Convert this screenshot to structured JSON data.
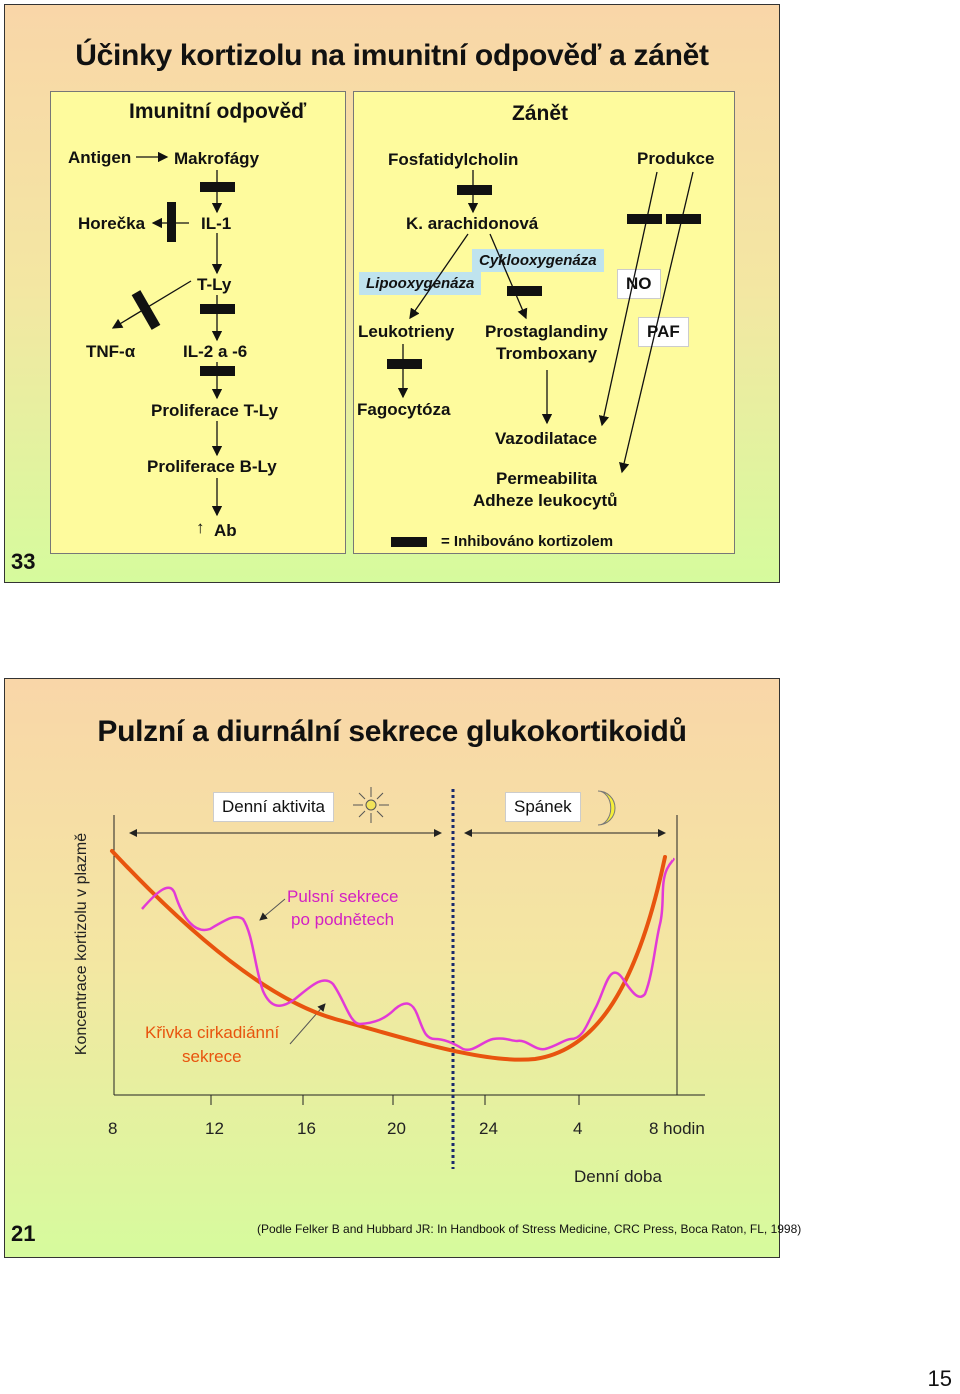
{
  "slide1": {
    "title": "Účinky kortizolu na imunitní odpověď a zánět",
    "number": "33",
    "left_panel": {
      "heading": "Imunitní odpověď",
      "antigen": "Antigen",
      "makrofagy": "Makrofágy",
      "horecka": "Horečka",
      "il1": "IL-1",
      "tly": "T-Ly",
      "tnf": "TNF-α",
      "il26": "IL-2 a -6",
      "prolif_t": "Proliferace T-Ly",
      "prolif_b": "Proliferace B-Ly",
      "ab_arrow": "↑",
      "ab": "Ab"
    },
    "right_panel": {
      "heading": "Zánět",
      "fosfatidylcholin": "Fosfatidylcholin",
      "produkce": "Produkce",
      "arachidonova": "K. arachidonová",
      "cyklooxygenaza": "Cyklooxygenáza",
      "lipooxygenaza": "Lipooxygenáza",
      "no": "NO",
      "paf": "PAF",
      "leukotrieny": "Leukotrieny",
      "prostaglandiny": "Prostaglandiny",
      "tromboxany": "Tromboxany",
      "fagocytoza": "Fagocytóza",
      "vazodilatace": "Vazodilatace",
      "permeabilita": "Permeabilita",
      "adheze": "Adheze leukocytů",
      "legend": "= Inhibováno kortizolem"
    }
  },
  "slide2": {
    "title": "Pulzní a diurnální sekrece glukokortikoidů",
    "number": "21",
    "denni_aktivita": "Denní aktivita",
    "spanek": "Spánek",
    "ylabel": "Koncentrace kortizolu v plazmě",
    "pulse_label_1": "Pulsní sekrece",
    "pulse_label_2": "po podnětech",
    "circ_label_1": "Křivka cirkadiánní",
    "circ_label_2": "sekrece",
    "xlabel": "Denní doba",
    "citation": "(Podle Felker B and Hubbard JR: In Handbook of Stress Medicine, CRC Press, Boca Raton, FL, 1998)",
    "colors": {
      "circadian": "#e8540e",
      "pulse": "#e23ad6"
    }
  },
  "chart_data": {
    "type": "line",
    "title": "Pulzní a diurnální sekrece glukokortikoidů",
    "xlabel": "Denní doba",
    "ylabel": "Koncentrace kortizolu v plazmě",
    "x_ticks": [
      "8",
      "12",
      "16",
      "20",
      "24",
      "4",
      "8 hodin"
    ],
    "series": [
      {
        "name": "Křivka cirkadiánní sekrece"
      },
      {
        "name": "Pulsní sekrece po podnětech"
      }
    ]
  },
  "page_number": "15"
}
